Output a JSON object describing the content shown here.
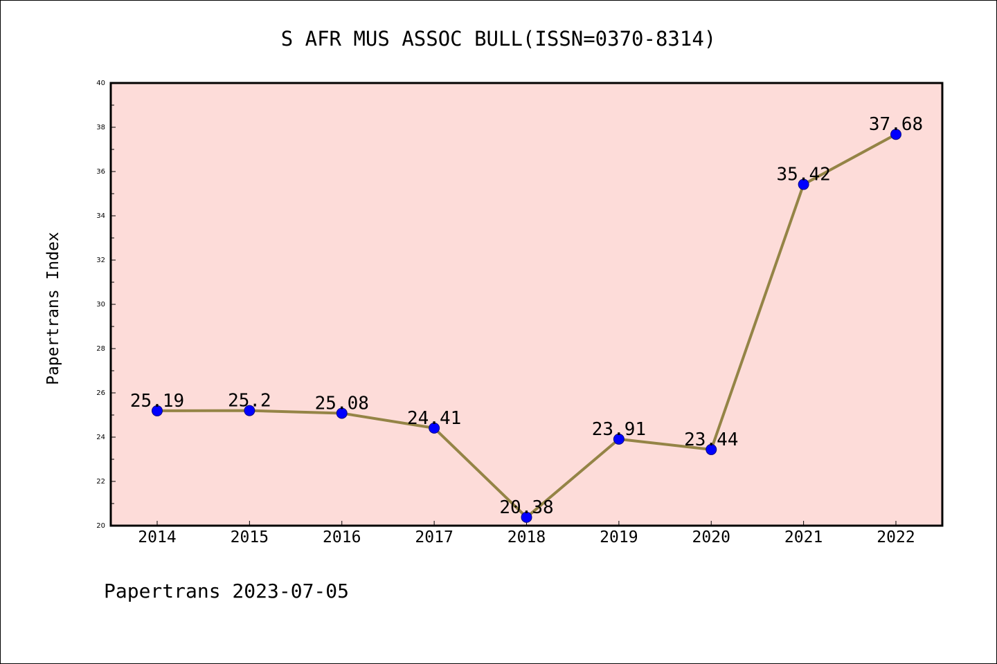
{
  "chart_data": {
    "type": "line",
    "title": "S AFR MUS ASSOC BULL(ISSN=0370-8314)",
    "ylabel": "Papertrans Index",
    "xlabel": "",
    "footer": "Papertrans 2023-07-05",
    "categories": [
      "2014",
      "2015",
      "2016",
      "2017",
      "2018",
      "2019",
      "2020",
      "2021",
      "2022"
    ],
    "values": [
      25.19,
      25.2,
      25.08,
      24.41,
      20.38,
      23.91,
      23.44,
      35.42,
      37.68
    ],
    "data_labels": [
      "25.19",
      "25.2",
      "25.08",
      "24.41",
      "20.38",
      "23.91",
      "23.44",
      "35.42",
      "37.68"
    ],
    "ylim": [
      20,
      40
    ],
    "yticks": [
      20,
      22,
      24,
      26,
      28,
      30,
      32,
      34,
      36,
      38,
      40
    ],
    "grid": false,
    "colors": {
      "plot_background": "#fddcd9",
      "line": "#948446",
      "marker": "#0000ff",
      "marker_edge": "#0a0a80"
    }
  }
}
